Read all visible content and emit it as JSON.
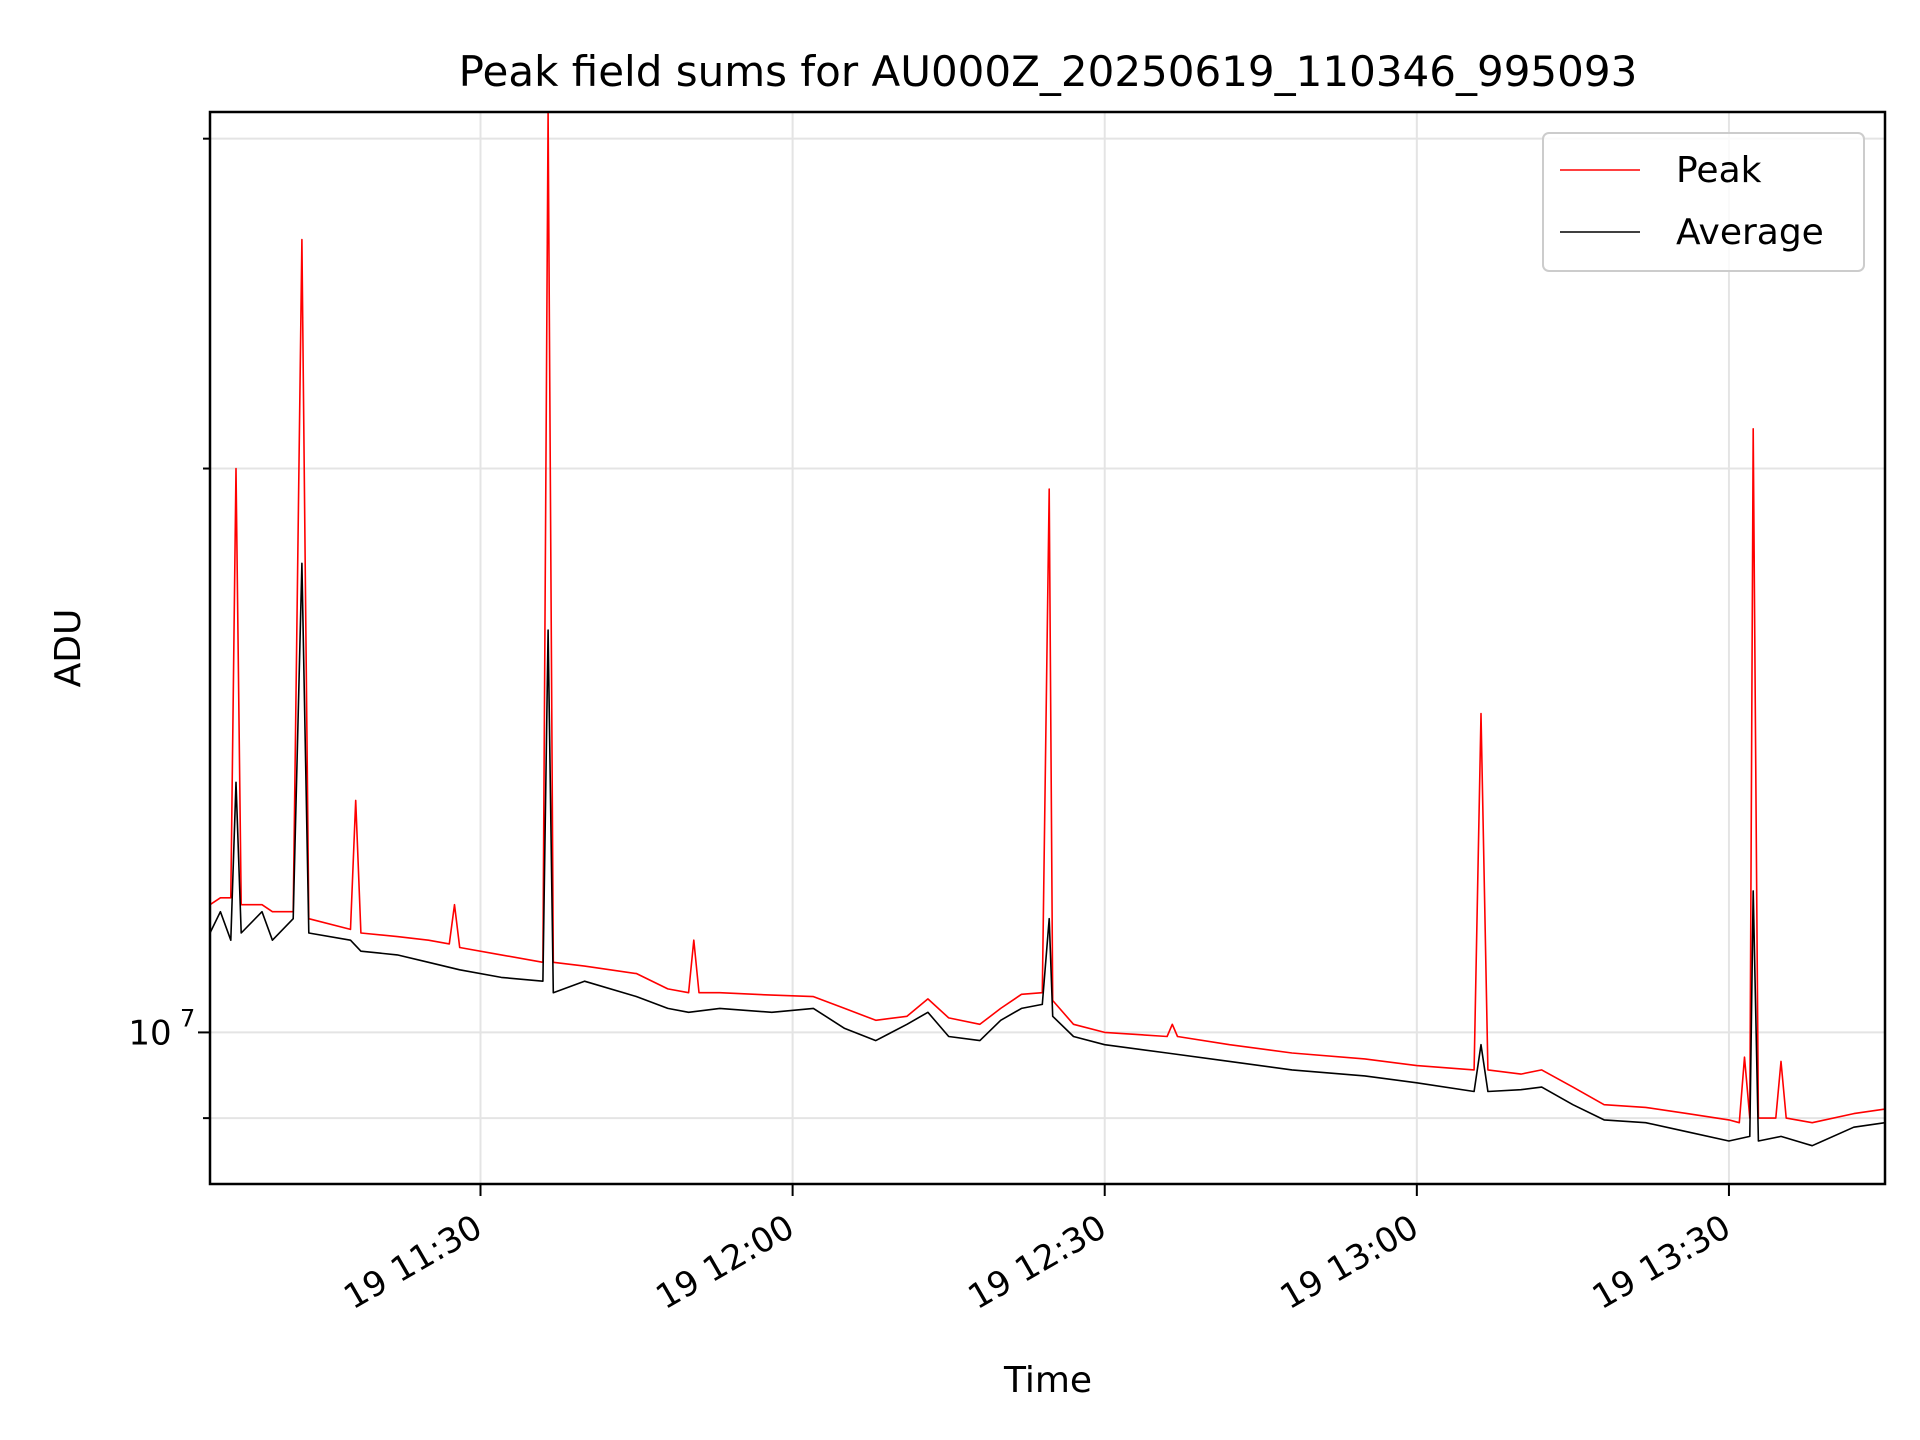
{
  "chart_data": {
    "type": "line",
    "title": "Peak field sums for AU000Z_20250619_110346_995093",
    "xlabel": "Time",
    "ylabel": "ADU",
    "x_tick_labels": [
      "19 11:30",
      "19 12:00",
      "19 12:30",
      "19 13:00",
      "19 13:30"
    ],
    "y_tick_labels": [
      {
        "base": "10",
        "exp": "7",
        "value": 10000000
      }
    ],
    "y_scale": "log",
    "ylim": [
      8300000,
      31000000
    ],
    "xlim": [
      "2025-06-19 11:04:00",
      "2025-06-19 13:45:00"
    ],
    "grid": true,
    "legend_position": "top-right",
    "colors": {
      "peak": "#ff0000",
      "average": "#000000"
    },
    "series": [
      {
        "name": "Peak",
        "color": "#ff0000",
        "points": [
          [
            "2025-06-19 11:04:00",
            11700000
          ],
          [
            "2025-06-19 11:05:00",
            11800000
          ],
          [
            "2025-06-19 11:06:00",
            11800000
          ],
          [
            "2025-06-19 11:06:30",
            20000000
          ],
          [
            "2025-06-19 11:07:00",
            11700000
          ],
          [
            "2025-06-19 11:09:00",
            11700000
          ],
          [
            "2025-06-19 11:10:00",
            11600000
          ],
          [
            "2025-06-19 11:12:00",
            11600000
          ],
          [
            "2025-06-19 11:12:50",
            26500000
          ],
          [
            "2025-06-19 11:13:30",
            11500000
          ],
          [
            "2025-06-19 11:17:30",
            11350000
          ],
          [
            "2025-06-19 11:18:00",
            13300000
          ],
          [
            "2025-06-19 11:18:30",
            11300000
          ],
          [
            "2025-06-19 11:22:00",
            11250000
          ],
          [
            "2025-06-19 11:25:00",
            11200000
          ],
          [
            "2025-06-19 11:27:00",
            11150000
          ],
          [
            "2025-06-19 11:27:30",
            11700000
          ],
          [
            "2025-06-19 11:28:00",
            11100000
          ],
          [
            "2025-06-19 11:32:00",
            11000000
          ],
          [
            "2025-06-19 11:36:00",
            10900000
          ],
          [
            "2025-06-19 11:36:30",
            31000000
          ],
          [
            "2025-06-19 11:37:00",
            10900000
          ],
          [
            "2025-06-19 11:40:00",
            10850000
          ],
          [
            "2025-06-19 11:45:00",
            10750000
          ],
          [
            "2025-06-19 11:48:00",
            10550000
          ],
          [
            "2025-06-19 11:50:00",
            10500000
          ],
          [
            "2025-06-19 11:50:30",
            11200000
          ],
          [
            "2025-06-19 11:51:00",
            10500000
          ],
          [
            "2025-06-19 11:53:00",
            10500000
          ],
          [
            "2025-06-19 11:58:00",
            10470000
          ],
          [
            "2025-06-19 12:02:00",
            10450000
          ],
          [
            "2025-06-19 12:05:00",
            10300000
          ],
          [
            "2025-06-19 12:08:00",
            10150000
          ],
          [
            "2025-06-19 12:11:00",
            10200000
          ],
          [
            "2025-06-19 12:13:00",
            10420000
          ],
          [
            "2025-06-19 12:15:00",
            10180000
          ],
          [
            "2025-06-19 12:18:00",
            10100000
          ],
          [
            "2025-06-19 12:20:00",
            10300000
          ],
          [
            "2025-06-19 12:22:00",
            10480000
          ],
          [
            "2025-06-19 12:24:00",
            10500000
          ],
          [
            "2025-06-19 12:24:40",
            19500000
          ],
          [
            "2025-06-19 12:25:00",
            10400000
          ],
          [
            "2025-06-19 12:27:00",
            10100000
          ],
          [
            "2025-06-19 12:30:00",
            10000000
          ],
          [
            "2025-06-19 12:36:00",
            9950000
          ],
          [
            "2025-06-19 12:36:30",
            10100000
          ],
          [
            "2025-06-19 12:37:00",
            9950000
          ],
          [
            "2025-06-19 12:42:00",
            9850000
          ],
          [
            "2025-06-19 12:48:00",
            9750000
          ],
          [
            "2025-06-19 12:55:00",
            9680000
          ],
          [
            "2025-06-19 13:00:00",
            9600000
          ],
          [
            "2025-06-19 13:05:30",
            9550000
          ],
          [
            "2025-06-19 13:06:10",
            14800000
          ],
          [
            "2025-06-19 13:06:50",
            9550000
          ],
          [
            "2025-06-19 13:10:00",
            9500000
          ],
          [
            "2025-06-19 13:12:00",
            9550000
          ],
          [
            "2025-06-19 13:15:00",
            9350000
          ],
          [
            "2025-06-19 13:18:00",
            9150000
          ],
          [
            "2025-06-19 13:22:00",
            9120000
          ],
          [
            "2025-06-19 13:26:00",
            9050000
          ],
          [
            "2025-06-19 13:30:00",
            8980000
          ],
          [
            "2025-06-19 13:31:00",
            8950000
          ],
          [
            "2025-06-19 13:31:30",
            9700000
          ],
          [
            "2025-06-19 13:32:00",
            9000000
          ],
          [
            "2025-06-19 13:32:20",
            21000000
          ],
          [
            "2025-06-19 13:32:50",
            9000000
          ],
          [
            "2025-06-19 13:34:30",
            9000000
          ],
          [
            "2025-06-19 13:35:00",
            9650000
          ],
          [
            "2025-06-19 13:35:30",
            9000000
          ],
          [
            "2025-06-19 13:38:00",
            8950000
          ],
          [
            "2025-06-19 13:42:00",
            9050000
          ],
          [
            "2025-06-19 13:45:00",
            9100000
          ]
        ]
      },
      {
        "name": "Average",
        "color": "#000000",
        "points": [
          [
            "2025-06-19 11:04:00",
            11300000
          ],
          [
            "2025-06-19 11:05:00",
            11600000
          ],
          [
            "2025-06-19 11:06:00",
            11200000
          ],
          [
            "2025-06-19 11:06:30",
            13600000
          ],
          [
            "2025-06-19 11:07:00",
            11300000
          ],
          [
            "2025-06-19 11:09:00",
            11600000
          ],
          [
            "2025-06-19 11:10:00",
            11200000
          ],
          [
            "2025-06-19 11:12:00",
            11500000
          ],
          [
            "2025-06-19 11:12:50",
            17800000
          ],
          [
            "2025-06-19 11:13:30",
            11300000
          ],
          [
            "2025-06-19 11:17:30",
            11200000
          ],
          [
            "2025-06-19 11:18:30",
            11050000
          ],
          [
            "2025-06-19 11:22:00",
            11000000
          ],
          [
            "2025-06-19 11:25:00",
            10900000
          ],
          [
            "2025-06-19 11:28:00",
            10800000
          ],
          [
            "2025-06-19 11:32:00",
            10700000
          ],
          [
            "2025-06-19 11:36:00",
            10650000
          ],
          [
            "2025-06-19 11:36:30",
            16400000
          ],
          [
            "2025-06-19 11:37:00",
            10500000
          ],
          [
            "2025-06-19 11:40:00",
            10650000
          ],
          [
            "2025-06-19 11:45:00",
            10450000
          ],
          [
            "2025-06-19 11:48:00",
            10300000
          ],
          [
            "2025-06-19 11:50:00",
            10250000
          ],
          [
            "2025-06-19 11:53:00",
            10300000
          ],
          [
            "2025-06-19 11:58:00",
            10250000
          ],
          [
            "2025-06-19 12:02:00",
            10300000
          ],
          [
            "2025-06-19 12:05:00",
            10050000
          ],
          [
            "2025-06-19 12:08:00",
            9900000
          ],
          [
            "2025-06-19 12:11:00",
            10100000
          ],
          [
            "2025-06-19 12:13:00",
            10250000
          ],
          [
            "2025-06-19 12:15:00",
            9950000
          ],
          [
            "2025-06-19 12:18:00",
            9900000
          ],
          [
            "2025-06-19 12:20:00",
            10150000
          ],
          [
            "2025-06-19 12:22:00",
            10300000
          ],
          [
            "2025-06-19 12:24:00",
            10350000
          ],
          [
            "2025-06-19 12:24:40",
            11500000
          ],
          [
            "2025-06-19 12:25:00",
            10200000
          ],
          [
            "2025-06-19 12:27:00",
            9950000
          ],
          [
            "2025-06-19 12:30:00",
            9850000
          ],
          [
            "2025-06-19 12:36:00",
            9750000
          ],
          [
            "2025-06-19 12:42:00",
            9650000
          ],
          [
            "2025-06-19 12:48:00",
            9550000
          ],
          [
            "2025-06-19 12:55:00",
            9480000
          ],
          [
            "2025-06-19 13:00:00",
            9400000
          ],
          [
            "2025-06-19 13:05:30",
            9300000
          ],
          [
            "2025-06-19 13:06:10",
            9850000
          ],
          [
            "2025-06-19 13:06:50",
            9300000
          ],
          [
            "2025-06-19 13:10:00",
            9320000
          ],
          [
            "2025-06-19 13:12:00",
            9350000
          ],
          [
            "2025-06-19 13:15:00",
            9150000
          ],
          [
            "2025-06-19 13:18:00",
            8980000
          ],
          [
            "2025-06-19 13:22:00",
            8950000
          ],
          [
            "2025-06-19 13:26:00",
            8850000
          ],
          [
            "2025-06-19 13:30:00",
            8750000
          ],
          [
            "2025-06-19 13:32:00",
            8800000
          ],
          [
            "2025-06-19 13:32:20",
            11900000
          ],
          [
            "2025-06-19 13:32:50",
            8750000
          ],
          [
            "2025-06-19 13:35:00",
            8800000
          ],
          [
            "2025-06-19 13:38:00",
            8700000
          ],
          [
            "2025-06-19 13:42:00",
            8900000
          ],
          [
            "2025-06-19 13:45:00",
            8950000
          ]
        ]
      }
    ]
  }
}
